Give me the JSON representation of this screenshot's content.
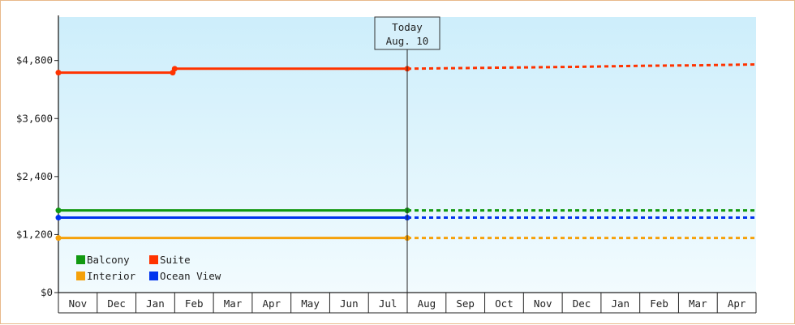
{
  "chart_data": {
    "type": "line",
    "y_ticks": [
      "$0",
      "$1,200",
      "$2,400",
      "$3,600",
      "$4,800"
    ],
    "ylim": [
      0,
      5700
    ],
    "months": [
      "Nov",
      "Dec",
      "Jan",
      "Feb",
      "Mar",
      "Apr",
      "May",
      "Jun",
      "Jul",
      "Aug",
      "Sep",
      "Oct",
      "Nov",
      "Dec",
      "Jan",
      "Feb",
      "Mar",
      "Apr"
    ],
    "xlim": [
      0,
      18.0
    ],
    "today": {
      "x": 9.0,
      "line1": "Today",
      "line2": "Aug. 10"
    },
    "legend_columns": 2,
    "series": [
      {
        "name": "Balcony",
        "color": "#119911",
        "actual": [
          [
            0,
            1700
          ],
          [
            9.0,
            1700
          ]
        ],
        "projected": [
          [
            9.0,
            1700
          ],
          [
            18.0,
            1700
          ]
        ]
      },
      {
        "name": "Suite",
        "color": "#ff3300",
        "actual": [
          [
            0,
            4550
          ],
          [
            2.95,
            4550
          ],
          [
            3.0,
            4630
          ],
          [
            9.0,
            4630
          ]
        ],
        "projected": [
          [
            9.0,
            4630
          ],
          [
            10.0,
            4640
          ],
          [
            13.5,
            4670
          ],
          [
            15.0,
            4690
          ],
          [
            16.5,
            4700
          ],
          [
            18.0,
            4720
          ]
        ]
      },
      {
        "name": "Interior",
        "color": "#f5a10a",
        "actual": [
          [
            0,
            1130
          ],
          [
            9.0,
            1130
          ]
        ],
        "projected": [
          [
            9.0,
            1130
          ],
          [
            18.0,
            1130
          ]
        ]
      },
      {
        "name": "Ocean View",
        "color": "#0033ee",
        "actual": [
          [
            0,
            1550
          ],
          [
            9.0,
            1550
          ]
        ],
        "projected": [
          [
            9.0,
            1550
          ],
          [
            18.0,
            1550
          ]
        ]
      }
    ]
  }
}
